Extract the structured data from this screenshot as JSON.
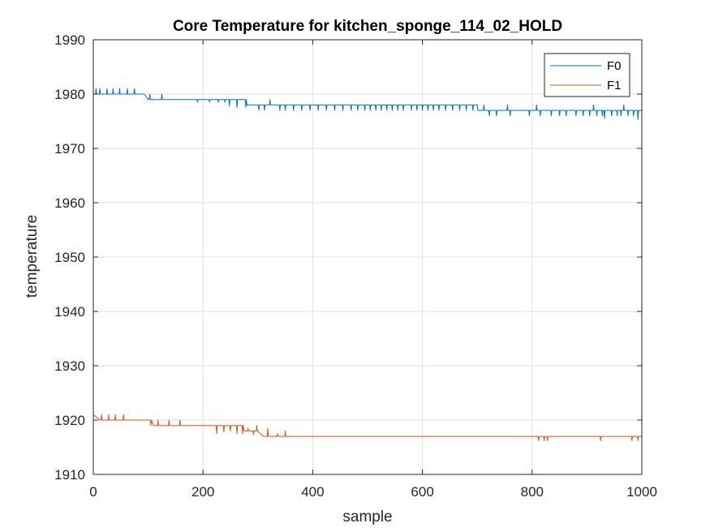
{
  "chart_data": {
    "type": "line",
    "title": "Core Temperature for kitchen_sponge_114_02_HOLD",
    "xlabel": "sample",
    "ylabel": "temperature",
    "xlim": [
      0,
      1000
    ],
    "ylim": [
      1910,
      1990
    ],
    "xticks": [
      0,
      200,
      400,
      600,
      800,
      1000
    ],
    "yticks": [
      1910,
      1920,
      1930,
      1940,
      1950,
      1960,
      1970,
      1980,
      1990
    ],
    "grid": true,
    "legend_position": "top-right",
    "series": [
      {
        "name": "F0",
        "color": "#0072bd",
        "base": [
          [
            0,
            1980
          ],
          [
            100,
            1979
          ],
          [
            230,
            1979
          ],
          [
            280,
            1978
          ],
          [
            700,
            1977
          ],
          [
            1000,
            1977
          ]
        ],
        "spikes": [
          [
            5,
            1981
          ],
          [
            12,
            1981
          ],
          [
            18,
            1980
          ],
          [
            25,
            1981
          ],
          [
            30,
            1980
          ],
          [
            36,
            1981
          ],
          [
            42,
            1980
          ],
          [
            48,
            1981
          ],
          [
            55,
            1980
          ],
          [
            62,
            1981
          ],
          [
            68,
            1980
          ],
          [
            75,
            1981
          ],
          [
            80,
            1980
          ],
          [
            92,
            1980
          ],
          [
            103,
            1980
          ],
          [
            125,
            1980
          ],
          [
            190,
            1978.5
          ],
          [
            212,
            1978.5
          ],
          [
            228,
            1978.5
          ],
          [
            240,
            1978.5
          ],
          [
            248,
            1977.8
          ],
          [
            255,
            1979
          ],
          [
            262,
            1977.5
          ],
          [
            270,
            1979
          ],
          [
            278,
            1977.5
          ],
          [
            302,
            1977
          ],
          [
            312,
            1977
          ],
          [
            322,
            1979
          ],
          [
            340,
            1977
          ],
          [
            350,
            1977
          ],
          [
            365,
            1977
          ],
          [
            380,
            1977
          ],
          [
            395,
            1977
          ],
          [
            410,
            1977
          ],
          [
            425,
            1977
          ],
          [
            440,
            1977
          ],
          [
            455,
            1977
          ],
          [
            470,
            1977
          ],
          [
            482,
            1977
          ],
          [
            495,
            1977
          ],
          [
            505,
            1977
          ],
          [
            515,
            1977
          ],
          [
            525,
            1977
          ],
          [
            535,
            1977
          ],
          [
            545,
            1977
          ],
          [
            555,
            1977
          ],
          [
            565,
            1977
          ],
          [
            580,
            1977
          ],
          [
            590,
            1977
          ],
          [
            600,
            1977
          ],
          [
            610,
            1977
          ],
          [
            620,
            1977
          ],
          [
            630,
            1977
          ],
          [
            642,
            1977
          ],
          [
            655,
            1977
          ],
          [
            668,
            1977
          ],
          [
            680,
            1977
          ],
          [
            692,
            1977
          ],
          [
            700,
            1978
          ],
          [
            712,
            1978
          ],
          [
            722,
            1976
          ],
          [
            735,
            1976
          ],
          [
            755,
            1978
          ],
          [
            760,
            1976
          ],
          [
            795,
            1976
          ],
          [
            808,
            1978
          ],
          [
            815,
            1976
          ],
          [
            835,
            1976
          ],
          [
            850,
            1976
          ],
          [
            862,
            1976
          ],
          [
            880,
            1976
          ],
          [
            893,
            1976
          ],
          [
            905,
            1976
          ],
          [
            912,
            1978
          ],
          [
            918,
            1976
          ],
          [
            928,
            1976
          ],
          [
            932,
            1975.5
          ],
          [
            945,
            1976
          ],
          [
            955,
            1976
          ],
          [
            962,
            1976
          ],
          [
            967,
            1978
          ],
          [
            975,
            1976
          ],
          [
            985,
            1976
          ],
          [
            993,
            1975.3
          ]
        ]
      },
      {
        "name": "F1",
        "color": "#d95319",
        "base": [
          [
            0,
            1921
          ],
          [
            12,
            1920
          ],
          [
            100,
            1920
          ],
          [
            110,
            1919
          ],
          [
            230,
            1919
          ],
          [
            275,
            1918
          ],
          [
            310,
            1917
          ],
          [
            1000,
            1917
          ]
        ],
        "spikes": [
          [
            15,
            1921
          ],
          [
            22,
            1920
          ],
          [
            28,
            1921
          ],
          [
            35,
            1920
          ],
          [
            40,
            1921
          ],
          [
            48,
            1920
          ],
          [
            55,
            1921
          ],
          [
            62,
            1920
          ],
          [
            105,
            1919
          ],
          [
            118,
            1920
          ],
          [
            130,
            1919
          ],
          [
            138,
            1920
          ],
          [
            145,
            1919
          ],
          [
            158,
            1920
          ],
          [
            225,
            1917.5
          ],
          [
            232,
            1919
          ],
          [
            238,
            1917.8
          ],
          [
            244,
            1919
          ],
          [
            250,
            1918
          ],
          [
            256,
            1919
          ],
          [
            262,
            1917.5
          ],
          [
            268,
            1919
          ],
          [
            272,
            1917.5
          ],
          [
            282,
            1918.5
          ],
          [
            292,
            1917.3
          ],
          [
            298,
            1919
          ],
          [
            318,
            1918.5
          ],
          [
            336,
            1917.5
          ],
          [
            350,
            1918
          ],
          [
            812,
            1916.2
          ],
          [
            822,
            1916.2
          ],
          [
            828,
            1916.2
          ],
          [
            925,
            1916.2
          ],
          [
            982,
            1916.2
          ],
          [
            993,
            1916.2
          ]
        ]
      }
    ]
  }
}
